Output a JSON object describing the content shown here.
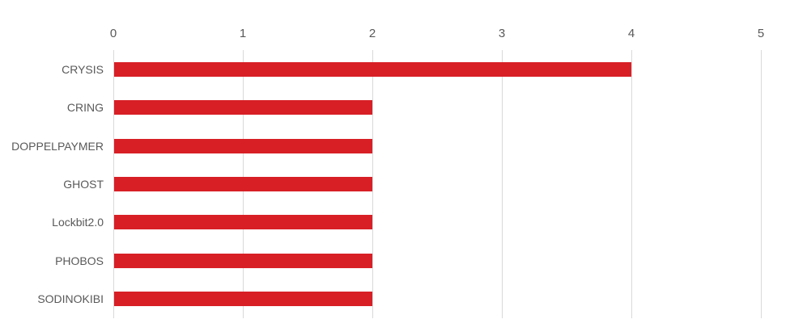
{
  "chart_data": {
    "type": "bar",
    "orientation": "horizontal",
    "title": "",
    "xlabel": "",
    "ylabel": "",
    "categories": [
      "CRYSIS",
      "CRING",
      "DOPPELPAYMER",
      "GHOST",
      "Lockbit2.0",
      "PHOBOS",
      "SODINOKIBI"
    ],
    "values": [
      4,
      2,
      2,
      2,
      2,
      2,
      2
    ],
    "x_ticks": [
      "0",
      "1",
      "2",
      "3",
      "4",
      "5"
    ],
    "xlim": [
      0,
      5
    ],
    "axis_position": "top",
    "grid": "vertical-only",
    "legend": "none",
    "colors": {
      "bar": "#D81F26",
      "gridline": "#D9D9D9",
      "axis_text": "#595959",
      "background": "#FFFFFF"
    }
  }
}
